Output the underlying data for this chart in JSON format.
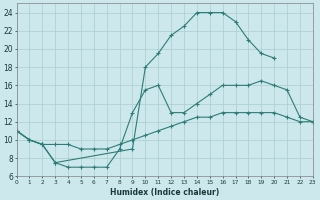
{
  "xlabel": "Humidex (Indice chaleur)",
  "bg_color": "#cde8ec",
  "grid_color": "#aacccc",
  "line_color": "#2d7c78",
  "curve1_x": [
    0,
    1,
    2,
    3,
    4,
    5,
    6,
    7,
    8,
    9,
    10,
    11,
    12,
    13,
    14,
    15,
    16,
    17,
    18,
    19,
    20,
    21,
    22,
    23
  ],
  "curve1_y": [
    11,
    10,
    9.5,
    9.5,
    9.5,
    9.0,
    9.0,
    9.0,
    9.5,
    10.0,
    10.5,
    11.0,
    11.5,
    12.0,
    12.5,
    12.5,
    13.0,
    13.0,
    13.0,
    13.0,
    13.0,
    12.5,
    12.0,
    12.0
  ],
  "curve2_x": [
    0,
    1,
    2,
    3,
    4,
    5,
    6,
    7,
    8,
    9,
    10,
    11,
    12,
    13,
    14,
    15,
    16,
    17,
    18,
    19,
    20,
    21,
    22,
    23
  ],
  "curve2_y": [
    11,
    10,
    9.5,
    7.5,
    7.0,
    7.0,
    7.0,
    7.0,
    9.0,
    13.0,
    15.5,
    16.0,
    13.0,
    13.0,
    14.0,
    15.0,
    16.0,
    16.0,
    16.0,
    16.5,
    16.0,
    15.5,
    12.5,
    12.0
  ],
  "curve3_x": [
    0,
    1,
    2,
    3,
    9,
    10,
    11,
    12,
    13,
    14,
    15,
    16,
    17,
    18,
    19,
    20
  ],
  "curve3_y": [
    11,
    10,
    9.5,
    7.5,
    9.0,
    18.0,
    19.5,
    21.5,
    22.5,
    24.0,
    24.0,
    24.0,
    23.0,
    21.0,
    19.5,
    19.0
  ],
  "xlim": [
    0,
    23
  ],
  "ylim": [
    6,
    25
  ],
  "xticks": [
    0,
    1,
    2,
    3,
    4,
    5,
    6,
    7,
    8,
    9,
    10,
    11,
    12,
    13,
    14,
    15,
    16,
    17,
    18,
    19,
    20,
    21,
    22,
    23
  ],
  "yticks": [
    6,
    8,
    10,
    12,
    14,
    16,
    18,
    20,
    22,
    24
  ]
}
